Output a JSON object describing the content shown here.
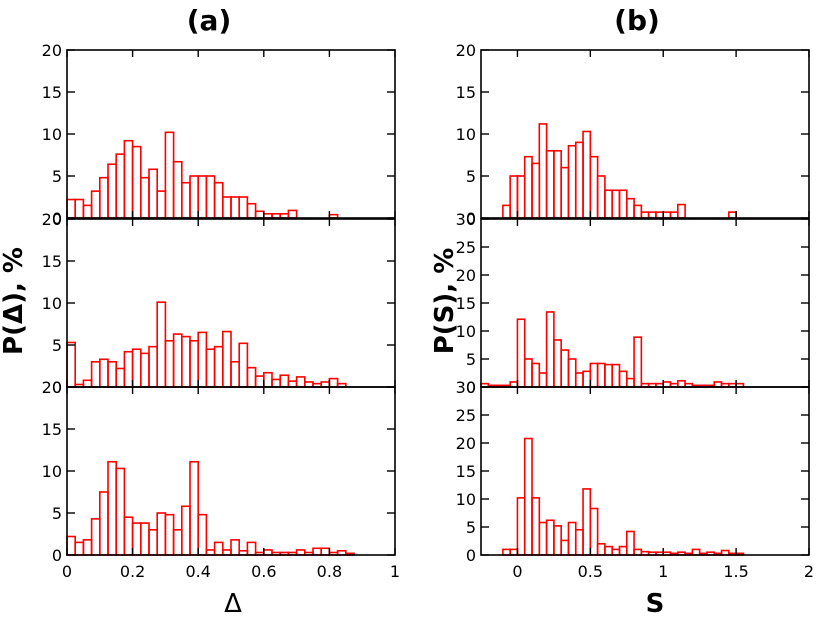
{
  "chart_data": [
    {
      "type": "bar",
      "panel": "(a)",
      "subplots": [
        {
          "x": [
            0.0,
            0.025,
            0.05,
            0.075,
            0.1,
            0.125,
            0.15,
            0.175,
            0.2,
            0.225,
            0.25,
            0.275,
            0.3,
            0.325,
            0.35,
            0.375,
            0.4,
            0.425,
            0.45,
            0.475,
            0.5,
            0.525,
            0.55,
            0.575,
            0.6,
            0.625,
            0.65,
            0.675,
            0.8
          ],
          "values": [
            2.2,
            2.2,
            1.5,
            3.2,
            4.8,
            6.4,
            7.6,
            9.2,
            8.5,
            4.8,
            5.8,
            3.2,
            10.2,
            6.7,
            4.2,
            5.0,
            5.0,
            5.0,
            4.2,
            2.5,
            2.5,
            2.5,
            1.7,
            0.8,
            0.5,
            0.5,
            0.5,
            0.9,
            0.4
          ],
          "ylim": [
            0,
            20
          ],
          "yticks": [
            "0",
            "5",
            "10",
            "15",
            "20"
          ]
        },
        {
          "x": [
            0.0,
            0.025,
            0.05,
            0.075,
            0.1,
            0.125,
            0.15,
            0.175,
            0.2,
            0.225,
            0.25,
            0.275,
            0.3,
            0.325,
            0.35,
            0.375,
            0.4,
            0.425,
            0.45,
            0.475,
            0.5,
            0.525,
            0.55,
            0.575,
            0.6,
            0.625,
            0.65,
            0.675,
            0.7,
            0.725,
            0.75,
            0.775,
            0.8,
            0.825
          ],
          "values": [
            5.3,
            0.3,
            0.8,
            3.0,
            3.3,
            3.0,
            2.2,
            4.2,
            4.5,
            4.0,
            4.8,
            10.1,
            5.5,
            6.3,
            6.0,
            5.5,
            6.5,
            4.5,
            4.8,
            6.6,
            3.0,
            5.2,
            2.3,
            1.3,
            1.7,
            0.9,
            1.4,
            0.7,
            1.2,
            0.6,
            0.4,
            0.6,
            1.0,
            0.4
          ],
          "ylim": [
            0,
            20
          ],
          "yticks": [
            "0",
            "5",
            "10",
            "15",
            "20"
          ]
        },
        {
          "x": [
            0.0,
            0.025,
            0.05,
            0.075,
            0.1,
            0.125,
            0.15,
            0.175,
            0.2,
            0.225,
            0.25,
            0.275,
            0.3,
            0.325,
            0.35,
            0.375,
            0.4,
            0.425,
            0.45,
            0.475,
            0.5,
            0.525,
            0.55,
            0.575,
            0.6,
            0.625,
            0.65,
            0.675,
            0.7,
            0.725,
            0.75,
            0.775,
            0.8,
            0.825,
            0.85
          ],
          "values": [
            2.2,
            1.5,
            1.8,
            4.3,
            7.5,
            11.1,
            10.3,
            4.5,
            3.8,
            3.8,
            3.0,
            5.0,
            4.8,
            3.0,
            5.8,
            11.1,
            4.8,
            0.6,
            1.5,
            0.6,
            1.8,
            0.5,
            1.5,
            0.3,
            0.6,
            0.3,
            0.3,
            0.3,
            0.6,
            0.3,
            0.8,
            0.8,
            0.3,
            0.5,
            0.2
          ],
          "ylim": [
            0,
            20
          ],
          "yticks": [
            "0",
            "5",
            "10",
            "15",
            "20"
          ]
        }
      ],
      "xticks": [
        "0",
        "0.2",
        "0.4",
        "0.6",
        "0.8",
        "1"
      ],
      "xtick_values": [
        0,
        0.2,
        0.4,
        0.6,
        0.8,
        1
      ],
      "xlim": [
        0,
        1
      ],
      "bin_width": 0.025,
      "xlabel": "Δ",
      "ylabel": "P(Δ), %"
    },
    {
      "type": "bar",
      "panel": "(b)",
      "subplots": [
        {
          "x": [
            -0.1,
            -0.05,
            0.0,
            0.05,
            0.1,
            0.15,
            0.2,
            0.25,
            0.3,
            0.35,
            0.4,
            0.45,
            0.5,
            0.55,
            0.6,
            0.65,
            0.7,
            0.75,
            0.8,
            0.85,
            0.9,
            0.95,
            1.0,
            1.05,
            1.1,
            1.45
          ],
          "values": [
            1.5,
            5.0,
            5.0,
            7.3,
            6.5,
            11.2,
            8.0,
            8.0,
            6.0,
            8.6,
            9.0,
            10.3,
            7.3,
            5.0,
            3.3,
            3.3,
            3.3,
            2.3,
            1.5,
            0.7,
            0.7,
            0.7,
            0.7,
            0.7,
            1.6,
            0.7
          ],
          "ylim": [
            0,
            20
          ],
          "yticks": [
            "0",
            "5",
            "10",
            "15",
            "20"
          ]
        },
        {
          "x": [
            -0.25,
            -0.2,
            -0.15,
            -0.1,
            -0.05,
            0.0,
            0.05,
            0.1,
            0.15,
            0.2,
            0.25,
            0.3,
            0.35,
            0.4,
            0.45,
            0.5,
            0.55,
            0.6,
            0.65,
            0.7,
            0.75,
            0.8,
            0.85,
            0.9,
            0.95,
            1.0,
            1.05,
            1.1,
            1.15,
            1.2,
            1.25,
            1.3,
            1.35,
            1.4,
            1.45,
            1.5
          ],
          "values": [
            0.6,
            0.3,
            0.3,
            0.3,
            0.9,
            12.1,
            5.0,
            4.2,
            2.5,
            13.4,
            8.4,
            6.6,
            5.0,
            2.5,
            2.8,
            4.2,
            4.2,
            4.0,
            4.0,
            2.8,
            1.5,
            8.9,
            0.6,
            0.6,
            0.6,
            0.9,
            0.6,
            1.1,
            0.6,
            0.3,
            0.3,
            0.3,
            0.9,
            0.6,
            0.6,
            0.6
          ],
          "ylim": [
            0,
            30
          ],
          "yticks": [
            "0",
            "5",
            "10",
            "15",
            "20",
            "25",
            "30"
          ]
        },
        {
          "x": [
            -0.1,
            -0.05,
            0.0,
            0.05,
            0.1,
            0.15,
            0.2,
            0.25,
            0.3,
            0.35,
            0.4,
            0.45,
            0.5,
            0.55,
            0.6,
            0.65,
            0.7,
            0.75,
            0.8,
            0.85,
            0.9,
            0.95,
            1.0,
            1.05,
            1.1,
            1.15,
            1.2,
            1.25,
            1.3,
            1.35,
            1.4,
            1.45,
            1.5
          ],
          "values": [
            1.0,
            1.0,
            10.2,
            20.8,
            10.2,
            5.8,
            6.2,
            5.2,
            2.6,
            5.8,
            4.5,
            11.8,
            8.3,
            2.0,
            1.5,
            1.0,
            1.5,
            4.2,
            1.0,
            0.6,
            0.5,
            0.5,
            0.5,
            0.3,
            0.5,
            0.3,
            1.0,
            0.3,
            0.5,
            0.3,
            0.8,
            0.3,
            0.3
          ],
          "ylim": [
            0,
            30
          ],
          "yticks": [
            "0",
            "5",
            "10",
            "15",
            "20",
            "25",
            "30"
          ]
        }
      ],
      "xticks": [
        "0",
        "0.5",
        "1",
        "1.5",
        "2"
      ],
      "xtick_values": [
        0,
        0.5,
        1,
        1.5,
        2
      ],
      "xlim": [
        -0.25,
        2
      ],
      "bin_width": 0.05,
      "xlabel": "S",
      "ylabel": "P(S), %"
    }
  ],
  "colors": {
    "bar": "#ff0000",
    "axis": "#000000",
    "background": "#ffffff"
  }
}
